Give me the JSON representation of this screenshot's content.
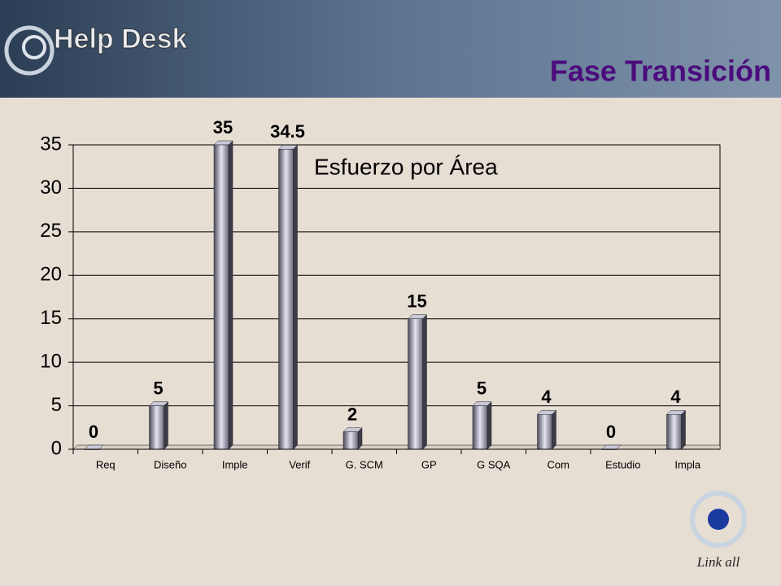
{
  "header": {
    "logo": "Help Desk",
    "title": "Fase Transición"
  },
  "footer": {
    "logo": "Link all"
  },
  "chart_data": {
    "type": "bar",
    "title": "Esfuerzo por Área",
    "categories": [
      "Req",
      "Diseño",
      "Imple",
      "Verif",
      "G. SCM",
      "GP",
      "G SQA",
      "Com",
      "Estudio",
      "Impla"
    ],
    "values": [
      0,
      5,
      35,
      34.5,
      2,
      15,
      5,
      4,
      0,
      4
    ],
    "ylim": [
      0,
      35
    ],
    "yticks": [
      0,
      5,
      10,
      15,
      20,
      25,
      30,
      35
    ],
    "grid": true,
    "color": "#9a9ab0"
  }
}
